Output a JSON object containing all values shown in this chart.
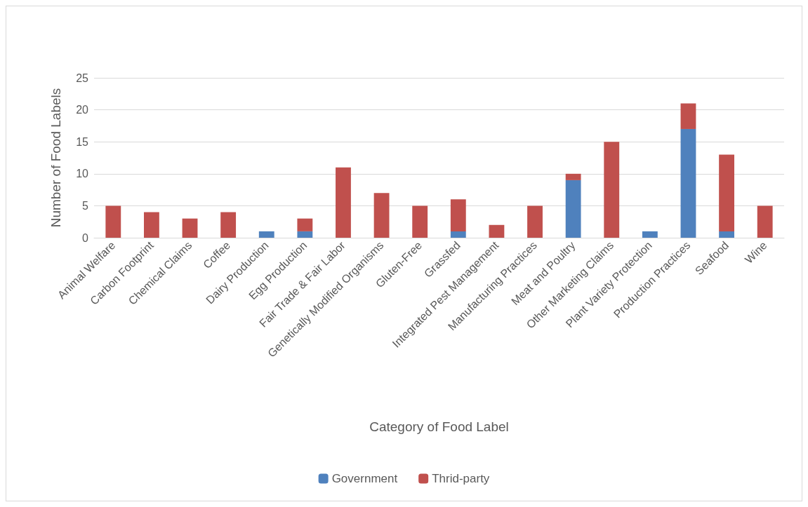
{
  "chart_data": {
    "type": "bar",
    "stacked": true,
    "xlabel": "Category of Food Label",
    "ylabel": "Number of Food Labels",
    "categories": [
      "Animal Welfare",
      "Carbon Footprint",
      "Chemical Claims",
      "Coffee",
      "Dairy Production",
      "Egg Production",
      "Fair Trade & Fair Labor",
      "Genetically Modified Organisms",
      "Gluten-Free",
      "Grassfed",
      "Integrated Pest Management",
      "Manufacturing Practices",
      "Meat and Poultry",
      "Other Marketing Claims",
      "Plant Variety Protection",
      "Production Practices",
      "Seafood",
      "Wine"
    ],
    "series": [
      {
        "name": "Government",
        "color": "#4f81bd",
        "values": [
          0,
          0,
          0,
          0,
          1,
          1,
          0,
          0,
          0,
          1,
          0,
          0,
          9,
          0,
          1,
          17,
          1,
          0
        ]
      },
      {
        "name": "Thrid-party",
        "color": "#c0504d",
        "values": [
          5,
          4,
          3,
          4,
          0,
          2,
          11,
          7,
          5,
          5,
          2,
          5,
          1,
          15,
          0,
          4,
          12,
          5
        ]
      }
    ],
    "ylim": [
      0,
      25
    ],
    "yticks": [
      0,
      5,
      10,
      15,
      20,
      25
    ],
    "grid": "y",
    "legend": "bottom"
  }
}
